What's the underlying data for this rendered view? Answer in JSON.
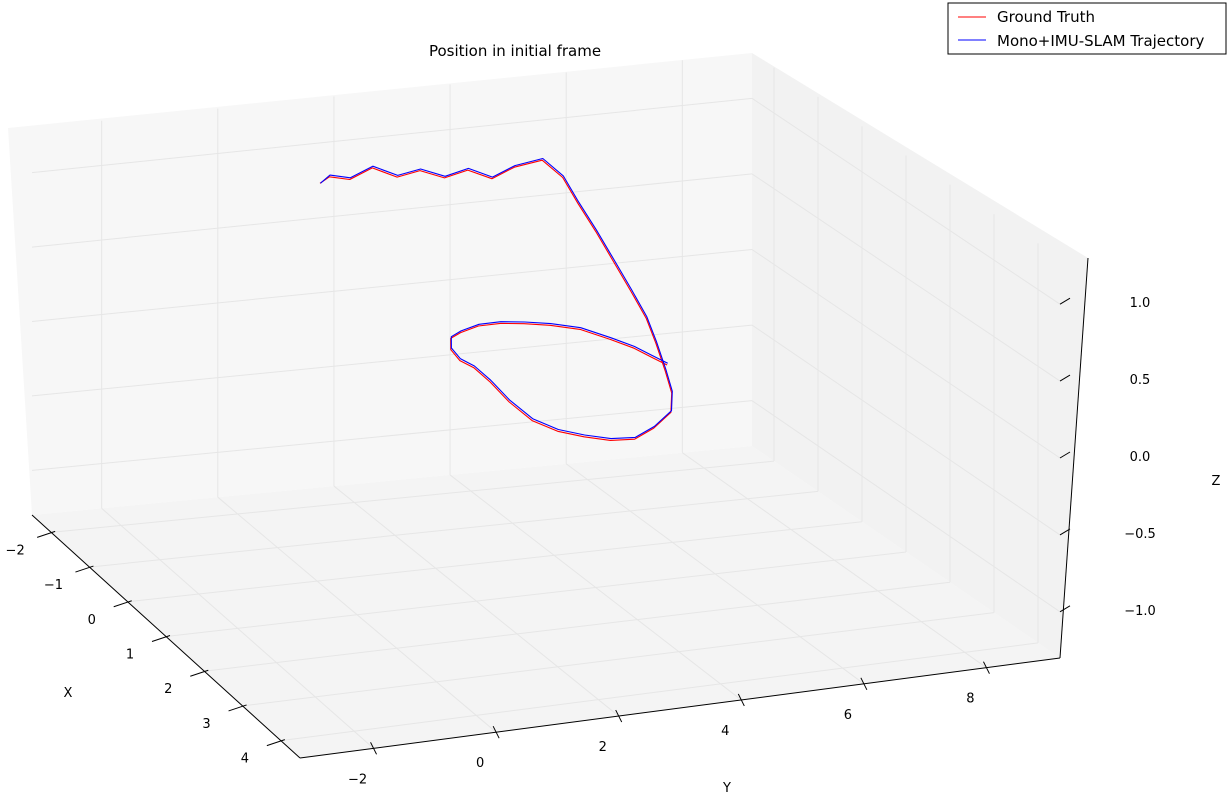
{
  "chart_data": {
    "type": "line",
    "projection": "3d",
    "title": "Position in initial frame",
    "xlabel": "X",
    "ylabel": "Y",
    "zlabel": "Z",
    "xlim": [
      -2.5,
      4.5
    ],
    "ylim": [
      -3.2,
      9.2
    ],
    "zlim": [
      -1.3,
      1.3
    ],
    "x_ticks": [
      -2,
      -1,
      0,
      1,
      2,
      3,
      4
    ],
    "y_ticks": [
      -2,
      0,
      2,
      4,
      6,
      8
    ],
    "z_ticks": [
      -1.0,
      -0.5,
      0.0,
      0.5,
      1.0
    ],
    "x_tick_labels": [
      "−2",
      "−1",
      "0",
      "1",
      "2",
      "3",
      "4"
    ],
    "y_tick_labels": [
      "−2",
      "0",
      "2",
      "4",
      "6",
      "8"
    ],
    "z_tick_labels": [
      "−1.0",
      "−0.5",
      "0.0",
      "0.5",
      "1.0"
    ],
    "grid": true,
    "legend_position": "top-right",
    "colors": {
      "ground_truth": "#ff0000",
      "slam": "#0000ff",
      "pane_left": "#f2f2f2",
      "pane_back": "#f7f7f7",
      "pane_floor": "#f4f4f4"
    },
    "series": [
      {
        "name": "Ground Truth",
        "color": "#ff0000",
        "points": [
          [
            -0.05,
            0.08,
            1.1
          ],
          [
            -0.02,
            0.22,
            1.14
          ],
          [
            0.0,
            0.55,
            1.12
          ],
          [
            -0.03,
            0.95,
            1.18
          ],
          [
            0.0,
            1.35,
            1.12
          ],
          [
            -0.02,
            1.75,
            1.15
          ],
          [
            0.0,
            2.15,
            1.1
          ],
          [
            -0.01,
            2.55,
            1.14
          ],
          [
            0.0,
            2.95,
            1.08
          ],
          [
            -0.03,
            3.35,
            1.14
          ],
          [
            0.0,
            3.8,
            1.18
          ],
          [
            0.35,
            3.9,
            1.12
          ],
          [
            0.65,
            3.95,
            1.0
          ],
          [
            1.0,
            4.0,
            0.88
          ],
          [
            1.35,
            4.05,
            0.75
          ],
          [
            1.7,
            4.1,
            0.62
          ],
          [
            2.0,
            4.15,
            0.5
          ],
          [
            2.3,
            4.1,
            0.4
          ],
          [
            2.6,
            4.05,
            0.28
          ],
          [
            2.9,
            3.95,
            0.2
          ],
          [
            3.1,
            3.8,
            0.12
          ],
          [
            3.2,
            3.45,
            0.05
          ],
          [
            3.25,
            3.1,
            0.0
          ],
          [
            3.25,
            2.7,
            0.0
          ],
          [
            3.2,
            2.3,
            0.02
          ],
          [
            3.15,
            1.9,
            0.05
          ],
          [
            3.05,
            1.55,
            0.1
          ],
          [
            2.85,
            1.3,
            0.18
          ],
          [
            2.6,
            1.15,
            0.26
          ],
          [
            2.3,
            1.08,
            0.3
          ],
          [
            2.0,
            1.05,
            0.3
          ],
          [
            1.7,
            1.1,
            0.32
          ],
          [
            1.4,
            1.3,
            0.34
          ],
          [
            1.2,
            1.6,
            0.34
          ],
          [
            1.05,
            2.0,
            0.35
          ],
          [
            1.0,
            2.4,
            0.35
          ],
          [
            1.0,
            2.8,
            0.34
          ],
          [
            1.05,
            3.2,
            0.33
          ],
          [
            1.2,
            3.6,
            0.32
          ],
          [
            1.5,
            3.9,
            0.3
          ],
          [
            1.85,
            4.05,
            0.3
          ],
          [
            2.2,
            4.1,
            0.3
          ],
          [
            2.5,
            4.15,
            0.3
          ]
        ]
      },
      {
        "name": "Mono+IMU-SLAM Trajectory",
        "color": "#0000ff",
        "points": [
          [
            -0.05,
            0.09,
            1.1
          ],
          [
            -0.02,
            0.23,
            1.15
          ],
          [
            0.0,
            0.56,
            1.13
          ],
          [
            -0.03,
            0.96,
            1.19
          ],
          [
            0.0,
            1.36,
            1.13
          ],
          [
            -0.02,
            1.76,
            1.16
          ],
          [
            0.0,
            2.16,
            1.11
          ],
          [
            -0.01,
            2.56,
            1.15
          ],
          [
            0.0,
            2.96,
            1.09
          ],
          [
            -0.03,
            3.36,
            1.15
          ],
          [
            0.0,
            3.81,
            1.19
          ],
          [
            0.35,
            3.91,
            1.13
          ],
          [
            0.65,
            3.96,
            1.01
          ],
          [
            1.0,
            4.01,
            0.89
          ],
          [
            1.35,
            4.06,
            0.76
          ],
          [
            1.7,
            4.11,
            0.63
          ],
          [
            2.0,
            4.16,
            0.51
          ],
          [
            2.3,
            4.11,
            0.41
          ],
          [
            2.6,
            4.06,
            0.29
          ],
          [
            2.9,
            3.96,
            0.21
          ],
          [
            3.1,
            3.81,
            0.13
          ],
          [
            3.2,
            3.46,
            0.06
          ],
          [
            3.25,
            3.11,
            0.01
          ],
          [
            3.25,
            2.71,
            0.01
          ],
          [
            3.2,
            2.31,
            0.03
          ],
          [
            3.15,
            1.91,
            0.06
          ],
          [
            3.05,
            1.56,
            0.11
          ],
          [
            2.85,
            1.31,
            0.19
          ],
          [
            2.6,
            1.16,
            0.27
          ],
          [
            2.3,
            1.09,
            0.31
          ],
          [
            2.0,
            1.06,
            0.31
          ],
          [
            1.7,
            1.11,
            0.33
          ],
          [
            1.4,
            1.31,
            0.35
          ],
          [
            1.2,
            1.61,
            0.35
          ],
          [
            1.05,
            2.01,
            0.36
          ],
          [
            1.0,
            2.41,
            0.36
          ],
          [
            1.0,
            2.81,
            0.35
          ],
          [
            1.05,
            3.21,
            0.34
          ],
          [
            1.2,
            3.61,
            0.33
          ],
          [
            1.5,
            3.91,
            0.31
          ],
          [
            1.85,
            4.06,
            0.31
          ],
          [
            2.2,
            4.11,
            0.31
          ],
          [
            2.5,
            4.16,
            0.31
          ]
        ]
      }
    ]
  },
  "legend": {
    "items": [
      {
        "label": "Ground Truth",
        "color": "#ff0000"
      },
      {
        "label": "Mono+IMU-SLAM Trajectory",
        "color": "#0000ff"
      }
    ]
  }
}
